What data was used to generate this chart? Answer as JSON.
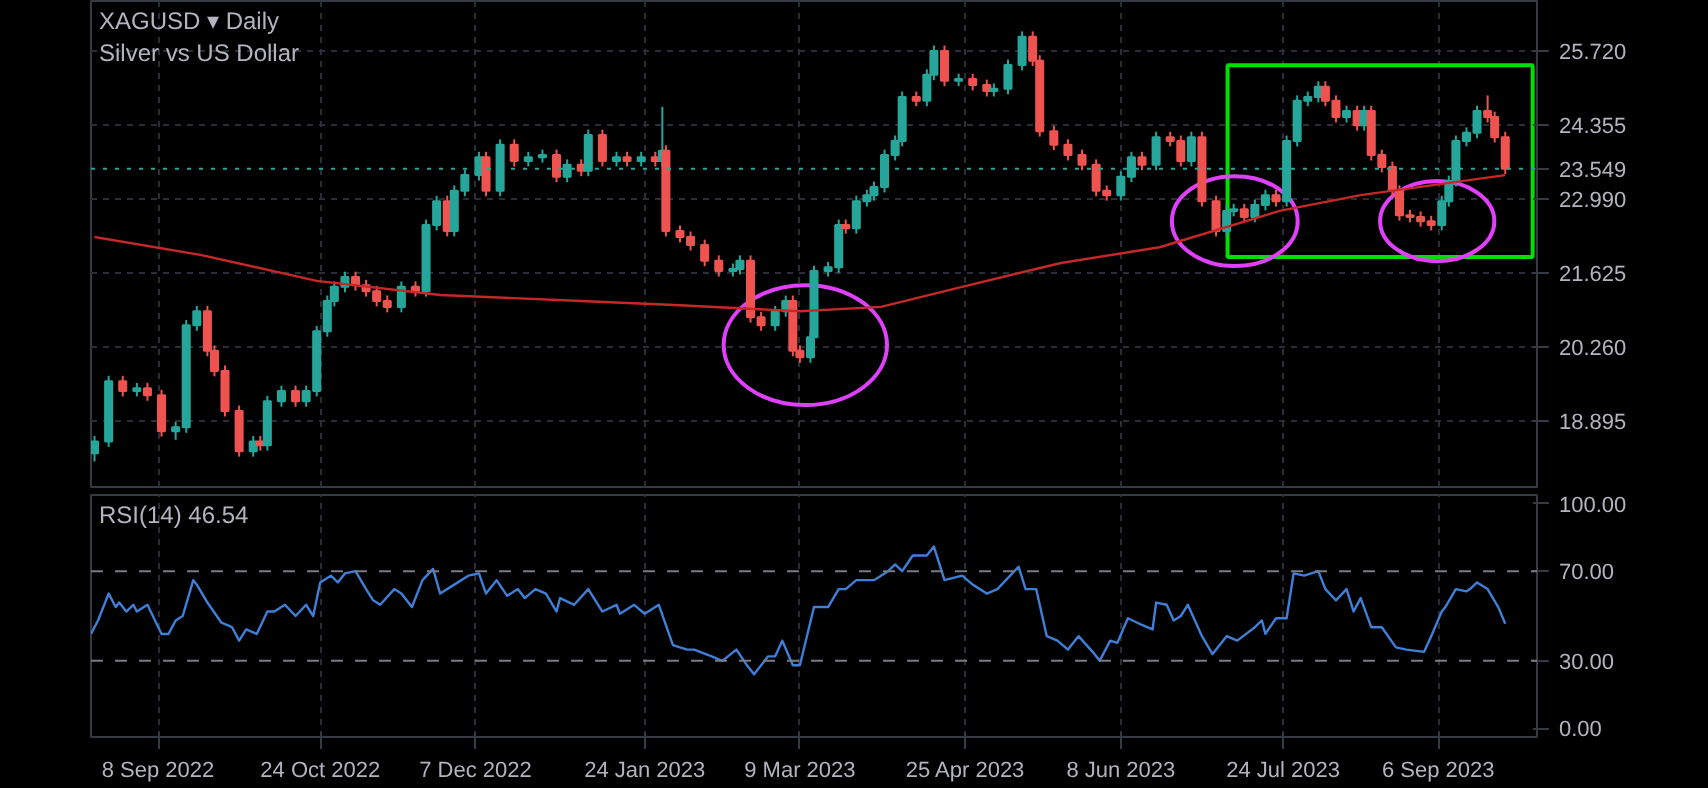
{
  "chart_data": [
    {
      "type": "candlestick",
      "title": "XAGUSD ▾ Daily",
      "subtitle": "Silver vs US Dollar",
      "series": [
        {
          "type": "candlestick",
          "colors": [
            "#26a69a",
            "#26a69a",
            "#ef5350",
            "#26a69a",
            "#ef5350",
            "#ef5350",
            "#26a69a",
            "#26a69a",
            "#26a69a",
            "#ef5350",
            "#ef5350",
            "#ef5350",
            "#ef5350",
            "#26a69a",
            "#ef5350",
            "#26a69a",
            "#26a69a",
            "#ef5350",
            "#26a69a",
            "#26a69a",
            "#26a69a",
            "#26a69a",
            "#26a69a",
            "#ef5350",
            "#ef5350",
            "#ef5350",
            "#ef5350",
            "#26a69a",
            "#ef5350",
            "#26a69a",
            "#26a69a",
            "#ef5350",
            "#26a69a",
            "#26a69a",
            "#26a69a",
            "#ef5350",
            "#26a69a",
            "#ef5350",
            "#26a69a",
            "#26a69a",
            "#ef5350",
            "#26a69a",
            "#ef5350",
            "#26a69a",
            "#ef5350",
            "#26a69a",
            "#ef5350",
            "#26a69a",
            "#ef5350",
            "#26a69a",
            "#ef5350",
            "#ef5350",
            "#ef5350",
            "#ef5350",
            "#ef5350",
            "#26a69a",
            "#26a69a",
            "#ef5350",
            "#ef5350",
            "#26a69a",
            "#26a69a",
            "#ef5350",
            "#ef5350",
            "#26a69a",
            "#26a69a",
            "#26a69a",
            "#26a69a",
            "#ef5350",
            "#26a69a",
            "#26a69a",
            "#26a69a",
            "#26a69a",
            "#26a69a",
            "#26a69a",
            "#ef5350",
            "#26a69a",
            "#26a69a",
            "#ef5350",
            "#26a69a",
            "#ef5350",
            "#ef5350",
            "#26a69a",
            "#26a69a",
            "#26a69a",
            "#ef5350",
            "#ef5350",
            "#ef5350",
            "#ef5350",
            "#ef5350",
            "#ef5350",
            "#ef5350",
            "#26a69a",
            "#26a69a",
            "#ef5350",
            "#26a69a",
            "#ef5350",
            "#ef5350",
            "#26a69a",
            "#ef5350",
            "#ef5350",
            "#26a69a",
            "#26a69a",
            "#ef5350",
            "#26a69a",
            "#26a69a",
            "#ef5350",
            "#26a69a",
            "#26a69a",
            "#26a69a",
            "#26a69a",
            "#ef5350",
            "#ef5350",
            "#26a69a",
            "#ef5350",
            "#26a69a",
            "#ef5350",
            "#ef5350",
            "#ef5350",
            "#ef5350",
            "#ef5350",
            "#ef5350",
            "#ef5350",
            "#26a69a",
            "#26a69a",
            "#26a69a",
            "#26a69a",
            "#26a69a",
            "#ef5350",
            "#ef5350",
            "#ef5350"
          ],
          "x": [
            "2022-08-21",
            "2022-08-25",
            "2022-08-29",
            "2022-09-02",
            "2022-09-05",
            "2022-09-09",
            "2022-09-13",
            "2022-09-16",
            "2022-09-19",
            "2022-09-22",
            "2022-09-24",
            "2022-09-27",
            "2022-10-01",
            "2022-10-05",
            "2022-10-07",
            "2022-10-09",
            "2022-10-13",
            "2022-10-17",
            "2022-10-20",
            "2022-10-23",
            "2022-10-26",
            "2022-10-28",
            "2022-10-31",
            "2022-11-03",
            "2022-11-06",
            "2022-11-09",
            "2022-11-12",
            "2022-11-16",
            "2022-11-20",
            "2022-11-23",
            "2022-11-26",
            "2022-11-29",
            "2022-12-01",
            "2022-12-04",
            "2022-12-08",
            "2022-12-10",
            "2022-12-14",
            "2022-12-18",
            "2022-12-22",
            "2022-12-26",
            "2022-12-30",
            "2023-01-02",
            "2023-01-06",
            "2023-01-08",
            "2023-01-12",
            "2023-01-16",
            "2023-01-19",
            "2023-01-23",
            "2023-01-27",
            "2023-01-29",
            "2023-01-30",
            "2023-02-03",
            "2023-02-06",
            "2023-02-10",
            "2023-02-14",
            "2023-02-18",
            "2023-02-20",
            "2023-02-23",
            "2023-02-26",
            "2023-03-02",
            "2023-03-05",
            "2023-03-07",
            "2023-03-09",
            "2023-03-12",
            "2023-03-13",
            "2023-03-17",
            "2023-03-20",
            "2023-03-22",
            "2023-03-25",
            "2023-03-28",
            "2023-03-30",
            "2023-04-02",
            "2023-04-05",
            "2023-04-07",
            "2023-04-11",
            "2023-04-14",
            "2023-04-16",
            "2023-04-19",
            "2023-04-23",
            "2023-04-27",
            "2023-05-01",
            "2023-05-03",
            "2023-05-07",
            "2023-05-11",
            "2023-05-14",
            "2023-05-16",
            "2023-05-20",
            "2023-05-24",
            "2023-05-28",
            "2023-06-01",
            "2023-06-04",
            "2023-06-08",
            "2023-06-11",
            "2023-06-14",
            "2023-06-18",
            "2023-06-22",
            "2023-06-25",
            "2023-06-28",
            "2023-07-01",
            "2023-07-05",
            "2023-07-08",
            "2023-07-10",
            "2023-07-13",
            "2023-07-16",
            "2023-07-19",
            "2023-07-22",
            "2023-07-25",
            "2023-07-28",
            "2023-07-31",
            "2023-08-03",
            "2023-08-05",
            "2023-08-08",
            "2023-08-11",
            "2023-08-14",
            "2023-08-16",
            "2023-08-18",
            "2023-08-21",
            "2023-08-24",
            "2023-08-26",
            "2023-08-29",
            "2023-09-01",
            "2023-09-04",
            "2023-09-07",
            "2023-09-09",
            "2023-09-11",
            "2023-09-14",
            "2023-09-17",
            "2023-09-20",
            "2023-09-22",
            "2023-09-25"
          ],
          "ohlc": [
            [
              18.3,
              18.62,
              18.15,
              18.52
            ],
            [
              18.52,
              19.73,
              18.42,
              19.63
            ],
            [
              19.63,
              19.73,
              19.35,
              19.45
            ],
            [
              19.45,
              19.6,
              19.35,
              19.5
            ],
            [
              19.5,
              19.6,
              19.27,
              19.37
            ],
            [
              19.37,
              19.47,
              18.61,
              18.71
            ],
            [
              18.71,
              18.88,
              18.55,
              18.78
            ],
            [
              18.78,
              20.76,
              18.68,
              20.66
            ],
            [
              20.66,
              21.02,
              20.56,
              20.92
            ],
            [
              20.92,
              21.02,
              20.09,
              20.19
            ],
            [
              20.19,
              20.29,
              19.72,
              19.82
            ],
            [
              19.82,
              19.92,
              18.98,
              19.08
            ],
            [
              19.08,
              19.18,
              18.24,
              18.34
            ],
            [
              18.34,
              18.62,
              18.24,
              18.52
            ],
            [
              18.52,
              18.62,
              18.35,
              18.45
            ],
            [
              18.45,
              19.36,
              18.35,
              19.26
            ],
            [
              19.26,
              19.55,
              19.16,
              19.45
            ],
            [
              19.45,
              19.55,
              19.16,
              19.26
            ],
            [
              19.26,
              19.55,
              19.16,
              19.45
            ],
            [
              19.45,
              20.65,
              19.35,
              20.55
            ],
            [
              20.55,
              21.21,
              20.45,
              21.11
            ],
            [
              21.11,
              21.47,
              21.01,
              21.37
            ],
            [
              21.37,
              21.65,
              21.27,
              21.55
            ],
            [
              21.55,
              21.65,
              21.3,
              21.4
            ],
            [
              21.4,
              21.5,
              21.19,
              21.29
            ],
            [
              21.29,
              21.39,
              21.01,
              21.11
            ],
            [
              21.11,
              21.21,
              20.9,
              21.0
            ],
            [
              21.0,
              21.47,
              20.9,
              21.37
            ],
            [
              21.37,
              21.47,
              21.19,
              21.29
            ],
            [
              21.29,
              22.61,
              21.19,
              22.51
            ],
            [
              22.51,
              23.05,
              22.41,
              22.95
            ],
            [
              22.95,
              23.05,
              22.3,
              22.4
            ],
            [
              22.4,
              23.24,
              22.3,
              23.14
            ],
            [
              23.14,
              23.53,
              23.04,
              23.43
            ],
            [
              23.43,
              23.86,
              23.33,
              23.76
            ],
            [
              23.76,
              23.86,
              23.04,
              23.14
            ],
            [
              23.14,
              24.09,
              23.04,
              23.99
            ],
            [
              23.99,
              24.09,
              23.59,
              23.69
            ],
            [
              23.69,
              23.86,
              23.59,
              23.76
            ],
            [
              23.76,
              23.9,
              23.66,
              23.8
            ],
            [
              23.8,
              23.9,
              23.3,
              23.4
            ],
            [
              23.4,
              23.72,
              23.3,
              23.62
            ],
            [
              23.62,
              23.72,
              23.41,
              23.51
            ],
            [
              23.51,
              24.27,
              23.41,
              24.17
            ],
            [
              24.17,
              24.27,
              23.59,
              23.69
            ],
            [
              23.69,
              23.86,
              23.59,
              23.76
            ],
            [
              23.76,
              23.86,
              23.59,
              23.69
            ],
            [
              23.69,
              23.86,
              23.59,
              23.76
            ],
            [
              23.76,
              23.86,
              23.59,
              23.69
            ],
            [
              23.69,
              24.69,
              23.59,
              23.88
            ],
            [
              23.88,
              23.98,
              22.3,
              22.4
            ],
            [
              22.4,
              22.5,
              22.19,
              22.29
            ],
            [
              22.29,
              22.39,
              22.04,
              22.14
            ],
            [
              22.14,
              22.24,
              21.75,
              21.85
            ],
            [
              21.85,
              21.95,
              21.56,
              21.66
            ],
            [
              21.66,
              21.8,
              21.56,
              21.7
            ],
            [
              21.7,
              21.95,
              21.6,
              21.85
            ],
            [
              21.85,
              21.95,
              20.71,
              20.81
            ],
            [
              20.81,
              20.91,
              20.56,
              20.66
            ],
            [
              20.66,
              21.02,
              20.56,
              20.92
            ],
            [
              20.92,
              21.21,
              20.82,
              21.11
            ],
            [
              21.11,
              21.21,
              20.09,
              20.19
            ],
            [
              20.19,
              20.29,
              19.97,
              20.07
            ],
            [
              20.07,
              20.54,
              19.97,
              20.44
            ],
            [
              20.44,
              21.76,
              20.34,
              21.66
            ],
            [
              21.66,
              21.83,
              21.56,
              21.73
            ],
            [
              21.73,
              22.61,
              21.63,
              22.51
            ],
            [
              22.51,
              22.61,
              22.35,
              22.45
            ],
            [
              22.45,
              23.05,
              22.35,
              22.95
            ],
            [
              22.95,
              23.16,
              22.85,
              23.06
            ],
            [
              23.06,
              23.31,
              22.96,
              23.21
            ],
            [
              23.21,
              23.9,
              23.11,
              23.8
            ],
            [
              23.8,
              24.16,
              23.7,
              24.06
            ],
            [
              24.06,
              24.97,
              23.96,
              24.87
            ],
            [
              24.87,
              24.97,
              24.7,
              24.8
            ],
            [
              24.8,
              25.38,
              24.7,
              25.28
            ],
            [
              25.28,
              25.82,
              25.18,
              25.72
            ],
            [
              25.72,
              25.82,
              25.07,
              25.17
            ],
            [
              25.17,
              25.3,
              25.07,
              25.2
            ],
            [
              25.2,
              25.3,
              24.99,
              25.09
            ],
            [
              25.09,
              25.19,
              24.88,
              24.98
            ],
            [
              24.98,
              25.12,
              24.88,
              25.02
            ],
            [
              25.02,
              25.56,
              24.92,
              25.46
            ],
            [
              25.46,
              26.08,
              25.36,
              25.98
            ],
            [
              25.98,
              26.08,
              25.44,
              25.54
            ],
            [
              25.54,
              25.64,
              24.14,
              24.24
            ],
            [
              24.24,
              24.34,
              23.89,
              23.99
            ],
            [
              23.99,
              24.09,
              23.7,
              23.8
            ],
            [
              23.8,
              23.9,
              23.52,
              23.62
            ],
            [
              23.62,
              23.72,
              23.04,
              23.14
            ],
            [
              23.14,
              23.24,
              22.96,
              23.06
            ],
            [
              23.06,
              23.5,
              22.96,
              23.4
            ],
            [
              23.4,
              23.86,
              23.3,
              23.76
            ],
            [
              23.76,
              23.86,
              23.52,
              23.62
            ],
            [
              23.62,
              24.23,
              23.52,
              24.13
            ],
            [
              24.13,
              24.23,
              23.96,
              24.06
            ],
            [
              24.06,
              24.16,
              23.59,
              23.69
            ],
            [
              23.69,
              24.23,
              23.59,
              24.13
            ],
            [
              24.13,
              24.23,
              22.85,
              22.95
            ],
            [
              22.95,
              23.05,
              22.3,
              22.4
            ],
            [
              22.4,
              22.87,
              22.3,
              22.77
            ],
            [
              22.77,
              22.9,
              22.67,
              22.8
            ],
            [
              22.8,
              22.9,
              22.56,
              22.66
            ],
            [
              22.66,
              22.98,
              22.56,
              22.88
            ],
            [
              22.88,
              23.16,
              22.78,
              23.06
            ],
            [
              23.06,
              23.16,
              22.85,
              22.95
            ],
            [
              22.95,
              24.16,
              22.85,
              24.06
            ],
            [
              24.06,
              24.9,
              23.96,
              24.8
            ],
            [
              24.8,
              24.97,
              24.7,
              24.87
            ],
            [
              24.87,
              25.16,
              24.77,
              25.06
            ],
            [
              25.06,
              25.16,
              24.7,
              24.8
            ],
            [
              24.8,
              24.9,
              24.4,
              24.5
            ],
            [
              24.5,
              24.71,
              24.4,
              24.61
            ],
            [
              24.61,
              24.71,
              24.25,
              24.35
            ],
            [
              24.35,
              24.71,
              24.25,
              24.61
            ],
            [
              24.61,
              24.71,
              23.7,
              23.8
            ],
            [
              23.8,
              23.9,
              23.48,
              23.58
            ],
            [
              23.58,
              23.68,
              23.04,
              23.14
            ],
            [
              23.14,
              23.24,
              22.59,
              22.69
            ],
            [
              22.69,
              22.79,
              22.56,
              22.66
            ],
            [
              22.66,
              22.76,
              22.48,
              22.58
            ],
            [
              22.58,
              22.68,
              22.41,
              22.51
            ],
            [
              22.51,
              23.05,
              22.41,
              22.95
            ],
            [
              22.95,
              23.42,
              22.85,
              23.32
            ],
            [
              23.32,
              24.16,
              23.22,
              24.06
            ],
            [
              24.06,
              24.31,
              23.96,
              24.21
            ],
            [
              24.21,
              24.71,
              24.11,
              24.61
            ],
            [
              24.61,
              24.9,
              24.4,
              24.5
            ],
            [
              24.5,
              24.6,
              24.03,
              24.13
            ],
            [
              24.13,
              24.23,
              23.45,
              23.549
            ]
          ]
        },
        {
          "type": "line",
          "color": "#c62828",
          "x": [
            "2022-08-21",
            "2022-09-20",
            "2022-10-23",
            "2022-11-27",
            "2023-01-06",
            "2023-02-03",
            "2023-03-09",
            "2023-04-01",
            "2023-04-24",
            "2023-05-22",
            "2023-06-19",
            "2023-07-23",
            "2023-08-15",
            "2023-09-25"
          ],
          "values": [
            22.29,
            21.96,
            21.48,
            21.22,
            21.11,
            21.03,
            20.92,
            21.0,
            21.37,
            21.81,
            22.1,
            22.77,
            23.06,
            23.43
          ]
        }
      ],
      "xlim": [
        "2022-08-20",
        "2023-10-04"
      ],
      "xticks": [
        {
          "value": "2022-09-08",
          "label": null
        },
        {
          "value": "2022-10-24",
          "label": null
        },
        {
          "value": "2022-12-07",
          "label": null
        },
        {
          "value": "2023-01-24",
          "label": null
        },
        {
          "value": "2023-03-09",
          "label": null
        },
        {
          "value": "2023-04-25",
          "label": null
        },
        {
          "value": "2023-06-08",
          "label": null
        },
        {
          "value": "2023-07-24",
          "label": null
        },
        {
          "value": "2023-09-06",
          "label": null
        }
      ],
      "ylim": [
        17.68,
        26.64
      ],
      "yticks": [
        {
          "value": 18.895,
          "label": "18.895"
        },
        {
          "value": 20.26,
          "label": "20.260"
        },
        {
          "value": 21.625,
          "label": "21.625"
        },
        {
          "value": 22.99,
          "label": "22.990"
        },
        {
          "value": 24.355,
          "label": "24.355"
        },
        {
          "value": 25.72,
          "label": "25.720"
        }
      ],
      "ref_lines": [
        {
          "axis": "y",
          "value": 23.549,
          "label": "23.549",
          "color": "#26a69a",
          "line_style": "dotted"
        }
      ],
      "grid": true,
      "tick_labels": "y"
    },
    {
      "type": "line",
      "title": "RSI(14) 46.54",
      "series": [
        {
          "color": "#3f7fd8",
          "x": [
            "2022-08-20",
            "2022-08-22",
            "2022-08-25",
            "2022-08-27",
            "2022-08-28",
            "2022-08-30",
            "2022-09-01",
            "2022-09-02",
            "2022-09-05",
            "2022-09-09",
            "2022-09-11",
            "2022-09-13",
            "2022-09-15",
            "2022-09-18",
            "2022-09-19",
            "2022-09-22",
            "2022-09-26",
            "2022-09-29",
            "2022-10-01",
            "2022-10-03",
            "2022-10-06",
            "2022-10-09",
            "2022-10-11",
            "2022-10-14",
            "2022-10-17",
            "2022-10-20",
            "2022-10-22",
            "2022-10-24",
            "2022-10-27",
            "2022-10-29",
            "2022-10-31",
            "2022-11-03",
            "2022-11-06",
            "2022-11-08",
            "2022-11-10",
            "2022-11-14",
            "2022-11-16",
            "2022-11-19",
            "2022-11-22",
            "2022-11-25",
            "2022-11-27",
            "2022-12-01",
            "2022-12-05",
            "2022-12-08",
            "2022-12-10",
            "2022-12-13",
            "2022-12-16",
            "2022-12-19",
            "2022-12-21",
            "2022-12-24",
            "2022-12-27",
            "2022-12-30",
            "2022-12-31",
            "2023-01-04",
            "2023-01-08",
            "2023-01-12",
            "2023-01-16",
            "2023-01-17",
            "2023-01-21",
            "2023-01-24",
            "2023-01-28",
            "2023-02-01",
            "2023-02-05",
            "2023-02-07",
            "2023-02-12",
            "2023-02-15",
            "2023-02-19",
            "2023-02-22",
            "2023-02-24",
            "2023-02-28",
            "2023-03-02",
            "2023-03-04",
            "2023-03-07",
            "2023-03-09",
            "2023-03-13",
            "2023-03-17",
            "2023-03-20",
            "2023-03-22",
            "2023-03-25",
            "2023-03-29",
            "2023-03-30",
            "2023-04-03",
            "2023-04-05",
            "2023-04-07",
            "2023-04-10",
            "2023-04-14",
            "2023-04-16",
            "2023-04-19",
            "2023-04-24",
            "2023-04-27",
            "2023-05-01",
            "2023-05-04",
            "2023-05-10",
            "2023-05-12",
            "2023-05-15",
            "2023-05-18",
            "2023-05-21",
            "2023-05-24",
            "2023-05-27",
            "2023-05-31",
            "2023-06-02",
            "2023-06-05",
            "2023-06-07",
            "2023-06-10",
            "2023-06-14",
            "2023-06-17",
            "2023-06-18",
            "2023-06-21",
            "2023-06-23",
            "2023-06-25",
            "2023-06-27",
            "2023-07-01",
            "2023-07-04",
            "2023-07-08",
            "2023-07-11",
            "2023-07-16",
            "2023-07-18",
            "2023-07-19",
            "2023-07-22",
            "2023-07-25",
            "2023-07-27",
            "2023-07-30",
            "2023-08-03",
            "2023-08-05",
            "2023-08-08",
            "2023-08-11",
            "2023-08-13",
            "2023-08-15",
            "2023-08-18",
            "2023-08-21",
            "2023-08-25",
            "2023-08-28",
            "2023-09-02",
            "2023-09-04",
            "2023-09-07",
            "2023-09-08",
            "2023-09-11",
            "2023-09-14",
            "2023-09-15",
            "2023-09-17",
            "2023-09-20",
            "2023-09-23",
            "2023-09-25"
          ],
          "values": [
            42,
            48,
            60,
            54,
            56,
            52,
            55,
            52,
            55,
            42,
            42,
            48,
            50,
            66,
            64,
            56,
            47,
            45,
            39,
            44,
            42,
            52,
            52,
            55,
            50,
            55,
            50,
            65,
            68,
            65,
            69,
            70,
            62,
            57,
            55,
            62,
            60,
            54,
            66,
            71,
            60,
            64,
            68,
            69,
            60,
            66,
            59,
            62,
            58,
            62,
            60,
            52,
            58,
            55,
            62,
            52,
            55,
            51,
            55,
            51,
            55,
            37,
            35,
            35,
            32,
            30,
            35,
            28,
            24,
            32,
            32,
            39,
            28,
            28,
            54,
            54,
            62,
            62,
            66,
            66,
            66,
            70,
            73,
            70,
            77,
            77,
            81,
            66,
            68,
            64,
            60,
            62,
            72,
            62,
            62,
            41,
            39,
            35,
            41,
            34,
            30,
            39,
            38,
            49,
            46,
            44,
            56,
            55,
            48,
            50,
            55,
            41,
            33,
            41,
            39,
            45,
            48,
            42,
            49,
            49,
            69,
            68,
            70,
            62,
            57,
            62,
            52,
            58,
            45,
            45,
            36,
            35,
            34,
            41,
            52,
            54,
            62,
            61,
            62,
            65,
            62,
            54,
            46.54
          ]
        }
      ],
      "xlim": [
        "2022-08-20",
        "2023-10-04"
      ],
      "xticks": [
        {
          "value": "2022-09-08",
          "label": "8 Sep 2022"
        },
        {
          "value": "2022-10-24",
          "label": "24 Oct 2022"
        },
        {
          "value": "2022-12-07",
          "label": "7 Dec 2022"
        },
        {
          "value": "2023-01-24",
          "label": "24 Jan 2023"
        },
        {
          "value": "2023-03-09",
          "label": "9 Mar 2023"
        },
        {
          "value": "2023-04-25",
          "label": "25 Apr 2023"
        },
        {
          "value": "2023-06-08",
          "label": "8 Jun 2023"
        },
        {
          "value": "2023-07-24",
          "label": "24 Jul 2023"
        },
        {
          "value": "2023-09-06",
          "label": "6 Sep 2023"
        }
      ],
      "ylim": [
        -4,
        104
      ],
      "yticks": [
        {
          "value": 0,
          "label": "0.00"
        },
        {
          "value": 30,
          "label": "30.00"
        },
        {
          "value": 70,
          "label": "70.00"
        },
        {
          "value": 100,
          "label": "100.00"
        }
      ],
      "ref_lines": [
        {
          "axis": "y",
          "value": 70,
          "color": "#787b86",
          "line_style": "dashed"
        },
        {
          "axis": "y",
          "value": 30,
          "color": "#787b86",
          "line_style": "dashed"
        }
      ],
      "grid": "x"
    }
  ]
}
